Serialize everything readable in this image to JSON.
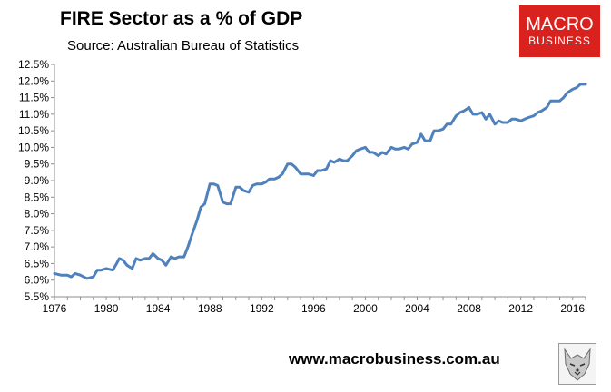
{
  "header": {
    "title": "FIRE Sector as a % of GDP",
    "subtitle": "Source: Australian Bureau of Statistics"
  },
  "logo": {
    "top_text": "MACRO",
    "bottom_text": "BUSINESS",
    "color": "#d9211d"
  },
  "footer": {
    "url": "www.macrobusiness.com.au"
  },
  "icons": {
    "wolf": "wolf-icon"
  },
  "colors": {
    "line": "#4f81bd",
    "axis": "#8c8c8c"
  },
  "chart_data": {
    "type": "line",
    "title": "FIRE Sector as a % of GDP",
    "subtitle": "Source: Australian Bureau of Statistics",
    "xlabel": "",
    "ylabel": "",
    "xlim": [
      1976,
      2017
    ],
    "ylim": [
      5.5,
      12.5
    ],
    "x_ticks": [
      "1976",
      "1980",
      "1984",
      "1988",
      "1992",
      "1996",
      "2000",
      "2004",
      "2008",
      "2012",
      "2016"
    ],
    "y_ticks": [
      "5.5%",
      "6.0%",
      "6.5%",
      "7.0%",
      "7.5%",
      "8.0%",
      "8.5%",
      "9.0%",
      "9.5%",
      "10.0%",
      "10.5%",
      "11.0%",
      "11.5%",
      "12.0%",
      "12.5%"
    ],
    "grid": false,
    "legend": "none",
    "series": [
      {
        "x": [
          1976.0,
          1976.5,
          1977.0,
          1977.3,
          1977.6,
          1978.0,
          1978.5,
          1979.0,
          1979.3,
          1979.6,
          1980.0,
          1980.5,
          1980.8,
          1981.0,
          1981.3,
          1981.6,
          1982.0,
          1982.3,
          1982.6,
          1983.0,
          1983.3,
          1983.6,
          1984.0,
          1984.3,
          1984.6,
          1985.0,
          1985.3,
          1985.6,
          1986.0,
          1986.3,
          1986.6,
          1987.0,
          1987.3,
          1987.6,
          1988.0,
          1988.3,
          1988.6,
          1989.0,
          1989.3,
          1989.6,
          1990.0,
          1990.3,
          1990.6,
          1991.0,
          1991.3,
          1991.6,
          1992.0,
          1992.3,
          1992.6,
          1993.0,
          1993.3,
          1993.6,
          1994.0,
          1994.3,
          1994.6,
          1995.0,
          1995.3,
          1995.6,
          1996.0,
          1996.3,
          1996.6,
          1997.0,
          1997.3,
          1997.6,
          1998.0,
          1998.3,
          1998.6,
          1999.0,
          1999.3,
          1999.6,
          2000.0,
          2000.3,
          2000.6,
          2001.0,
          2001.3,
          2001.6,
          2002.0,
          2002.3,
          2002.6,
          2003.0,
          2003.3,
          2003.6,
          2004.0,
          2004.3,
          2004.6,
          2005.0,
          2005.3,
          2005.6,
          2006.0,
          2006.3,
          2006.6,
          2007.0,
          2007.3,
          2007.6,
          2008.0,
          2008.3,
          2008.6,
          2009.0,
          2009.3,
          2009.6,
          2010.0,
          2010.3,
          2010.6,
          2011.0,
          2011.3,
          2011.6,
          2012.0,
          2012.3,
          2012.6,
          2013.0,
          2013.3,
          2013.6,
          2014.0,
          2014.3,
          2014.6,
          2015.0,
          2015.3,
          2015.6,
          2016.0,
          2016.3,
          2016.6,
          2017.0
        ],
        "values": [
          6.2,
          6.15,
          6.15,
          6.1,
          6.2,
          6.15,
          6.05,
          6.1,
          6.3,
          6.3,
          6.35,
          6.3,
          6.5,
          6.65,
          6.6,
          6.45,
          6.35,
          6.65,
          6.6,
          6.65,
          6.65,
          6.8,
          6.65,
          6.6,
          6.45,
          6.7,
          6.65,
          6.7,
          6.7,
          7.0,
          7.35,
          7.8,
          8.2,
          8.3,
          8.9,
          8.9,
          8.85,
          8.35,
          8.3,
          8.3,
          8.8,
          8.8,
          8.7,
          8.65,
          8.85,
          8.9,
          8.9,
          8.95,
          9.05,
          9.05,
          9.1,
          9.2,
          9.5,
          9.5,
          9.4,
          9.2,
          9.2,
          9.2,
          9.15,
          9.3,
          9.3,
          9.35,
          9.6,
          9.55,
          9.65,
          9.6,
          9.6,
          9.75,
          9.9,
          9.95,
          10.0,
          9.85,
          9.85,
          9.75,
          9.85,
          9.8,
          10.0,
          9.95,
          9.95,
          10.0,
          9.95,
          10.1,
          10.15,
          10.4,
          10.2,
          10.2,
          10.5,
          10.5,
          10.55,
          10.7,
          10.7,
          10.95,
          11.05,
          11.1,
          11.2,
          11.0,
          11.0,
          11.05,
          10.85,
          11.0,
          10.7,
          10.8,
          10.75,
          10.75,
          10.85,
          10.85,
          10.8,
          10.85,
          10.9,
          10.95,
          11.05,
          11.1,
          11.2,
          11.4,
          11.4,
          11.4,
          11.5,
          11.65,
          11.75,
          11.8,
          11.9,
          11.9
        ]
      }
    ]
  }
}
